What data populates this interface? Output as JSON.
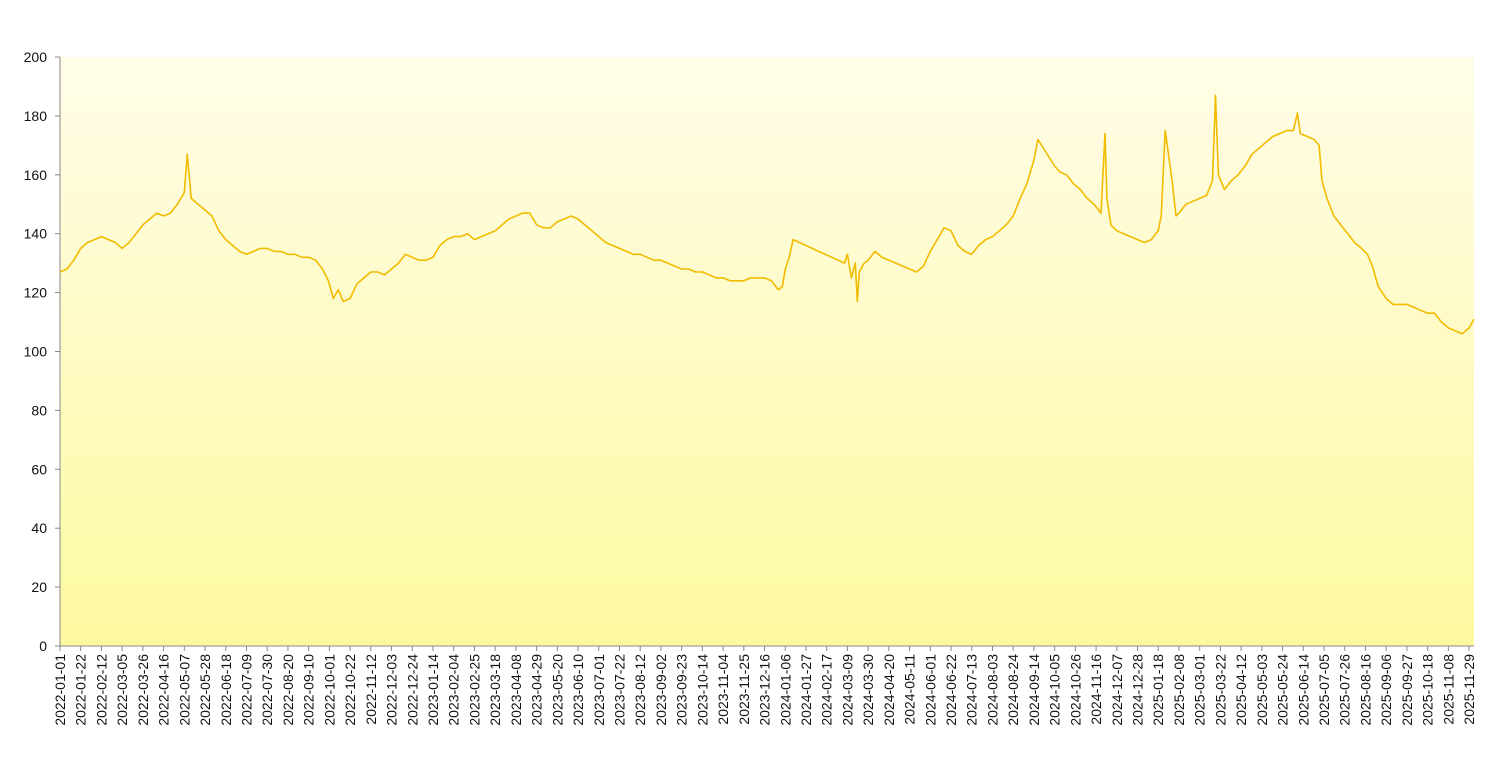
{
  "chart_data": {
    "type": "line",
    "title": "",
    "xlabel": "",
    "ylabel": "",
    "ylim": [
      0,
      200
    ],
    "y_ticks": [
      0,
      20,
      40,
      60,
      80,
      100,
      120,
      140,
      160,
      180,
      200
    ],
    "x_range": [
      "2022-01-01",
      "2025-12-04"
    ],
    "x_tick_labels": [
      "2022-01-01",
      "2022-01-22",
      "2022-02-12",
      "2022-03-05",
      "2022-03-26",
      "2022-04-16",
      "2022-05-07",
      "2022-05-28",
      "2022-06-18",
      "2022-07-09",
      "2022-07-30",
      "2022-08-20",
      "2022-09-10",
      "2022-10-01",
      "2022-10-22",
      "2022-11-12",
      "2022-12-03",
      "2022-12-24",
      "2023-01-14",
      "2023-02-04",
      "2023-02-25",
      "2023-03-18",
      "2023-04-08",
      "2023-04-29",
      "2023-05-20",
      "2023-06-10",
      "2023-07-01",
      "2023-07-22",
      "2023-08-12",
      "2023-09-02",
      "2023-09-23",
      "2023-10-14",
      "2023-11-04",
      "2023-11-25",
      "2023-12-16",
      "2024-01-06",
      "2024-01-27",
      "2024-02-17",
      "2024-03-09",
      "2024-03-30",
      "2024-04-20",
      "2024-05-11",
      "2024-06-01",
      "2024-06-22",
      "2024-07-13",
      "2024-08-03",
      "2024-08-24",
      "2024-09-14",
      "2024-10-05",
      "2024-10-26",
      "2024-11-16",
      "2024-12-07",
      "2024-12-28",
      "2025-01-18",
      "2025-02-08",
      "2025-03-01",
      "2025-03-22",
      "2025-04-12",
      "2025-05-03",
      "2025-05-24",
      "2025-06-14",
      "2025-07-05",
      "2025-07-26",
      "2025-08-16",
      "2025-09-06",
      "2025-09-27",
      "2025-10-18",
      "2025-11-08",
      "2025-11-29"
    ],
    "grid": false,
    "legend": "none",
    "background_gradient": [
      "#fffde8",
      "#fdf9a0"
    ],
    "line_color": "#f2bb00",
    "series": [
      {
        "points": [
          [
            "2022-01-01",
            127
          ],
          [
            "2022-01-08",
            128
          ],
          [
            "2022-01-15",
            131
          ],
          [
            "2022-01-22",
            135
          ],
          [
            "2022-01-29",
            137
          ],
          [
            "2022-02-05",
            138
          ],
          [
            "2022-02-12",
            139
          ],
          [
            "2022-02-19",
            138
          ],
          [
            "2022-02-26",
            137
          ],
          [
            "2022-03-05",
            135
          ],
          [
            "2022-03-12",
            137
          ],
          [
            "2022-03-19",
            140
          ],
          [
            "2022-03-26",
            143
          ],
          [
            "2022-04-02",
            145
          ],
          [
            "2022-04-09",
            147
          ],
          [
            "2022-04-16",
            146
          ],
          [
            "2022-04-23",
            147
          ],
          [
            "2022-04-30",
            150
          ],
          [
            "2022-05-07",
            154
          ],
          [
            "2022-05-10",
            167
          ],
          [
            "2022-05-14",
            152
          ],
          [
            "2022-05-21",
            150
          ],
          [
            "2022-05-28",
            148
          ],
          [
            "2022-06-04",
            146
          ],
          [
            "2022-06-11",
            141
          ],
          [
            "2022-06-18",
            138
          ],
          [
            "2022-06-25",
            136
          ],
          [
            "2022-07-02",
            134
          ],
          [
            "2022-07-09",
            133
          ],
          [
            "2022-07-16",
            134
          ],
          [
            "2022-07-23",
            135
          ],
          [
            "2022-07-30",
            135
          ],
          [
            "2022-08-06",
            134
          ],
          [
            "2022-08-13",
            134
          ],
          [
            "2022-08-20",
            133
          ],
          [
            "2022-08-27",
            133
          ],
          [
            "2022-09-03",
            132
          ],
          [
            "2022-09-10",
            132
          ],
          [
            "2022-09-17",
            131
          ],
          [
            "2022-09-24",
            128
          ],
          [
            "2022-09-30",
            124
          ],
          [
            "2022-10-05",
            118
          ],
          [
            "2022-10-10",
            121
          ],
          [
            "2022-10-15",
            117
          ],
          [
            "2022-10-22",
            118
          ],
          [
            "2022-10-29",
            123
          ],
          [
            "2022-11-05",
            125
          ],
          [
            "2022-11-12",
            127
          ],
          [
            "2022-11-19",
            127
          ],
          [
            "2022-11-26",
            126
          ],
          [
            "2022-12-03",
            128
          ],
          [
            "2022-12-10",
            130
          ],
          [
            "2022-12-17",
            133
          ],
          [
            "2022-12-24",
            132
          ],
          [
            "2022-12-31",
            131
          ],
          [
            "2023-01-07",
            131
          ],
          [
            "2023-01-14",
            132
          ],
          [
            "2023-01-21",
            136
          ],
          [
            "2023-01-28",
            138
          ],
          [
            "2023-02-04",
            139
          ],
          [
            "2023-02-11",
            139
          ],
          [
            "2023-02-18",
            140
          ],
          [
            "2023-02-25",
            138
          ],
          [
            "2023-03-04",
            139
          ],
          [
            "2023-03-11",
            140
          ],
          [
            "2023-03-18",
            141
          ],
          [
            "2023-03-25",
            143
          ],
          [
            "2023-04-01",
            145
          ],
          [
            "2023-04-08",
            146
          ],
          [
            "2023-04-15",
            147
          ],
          [
            "2023-04-22",
            147
          ],
          [
            "2023-04-29",
            143
          ],
          [
            "2023-05-06",
            142
          ],
          [
            "2023-05-13",
            142
          ],
          [
            "2023-05-20",
            144
          ],
          [
            "2023-05-27",
            145
          ],
          [
            "2023-06-03",
            146
          ],
          [
            "2023-06-10",
            145
          ],
          [
            "2023-06-17",
            143
          ],
          [
            "2023-06-24",
            141
          ],
          [
            "2023-07-01",
            139
          ],
          [
            "2023-07-08",
            137
          ],
          [
            "2023-07-15",
            136
          ],
          [
            "2023-07-22",
            135
          ],
          [
            "2023-07-29",
            134
          ],
          [
            "2023-08-05",
            133
          ],
          [
            "2023-08-12",
            133
          ],
          [
            "2023-08-19",
            132
          ],
          [
            "2023-08-26",
            131
          ],
          [
            "2023-09-02",
            131
          ],
          [
            "2023-09-09",
            130
          ],
          [
            "2023-09-16",
            129
          ],
          [
            "2023-09-23",
            128
          ],
          [
            "2023-09-30",
            128
          ],
          [
            "2023-10-07",
            127
          ],
          [
            "2023-10-14",
            127
          ],
          [
            "2023-10-21",
            126
          ],
          [
            "2023-10-28",
            125
          ],
          [
            "2023-11-04",
            125
          ],
          [
            "2023-11-11",
            124
          ],
          [
            "2023-11-18",
            124
          ],
          [
            "2023-11-25",
            124
          ],
          [
            "2023-12-02",
            125
          ],
          [
            "2023-12-09",
            125
          ],
          [
            "2023-12-16",
            125
          ],
          [
            "2023-12-23",
            124
          ],
          [
            "2023-12-30",
            121
          ],
          [
            "2024-01-03",
            122
          ],
          [
            "2024-01-06",
            128
          ],
          [
            "2024-01-10",
            132
          ],
          [
            "2024-01-14",
            138
          ],
          [
            "2024-03-06",
            130
          ],
          [
            "2024-03-09",
            133
          ],
          [
            "2024-03-13",
            125
          ],
          [
            "2024-03-17",
            130
          ],
          [
            "2024-03-19",
            117
          ],
          [
            "2024-03-21",
            127
          ],
          [
            "2024-03-26",
            130
          ],
          [
            "2024-03-30",
            131
          ],
          [
            "2024-04-06",
            134
          ],
          [
            "2024-04-13",
            132
          ],
          [
            "2024-04-20",
            131
          ],
          [
            "2024-04-27",
            130
          ],
          [
            "2024-05-04",
            129
          ],
          [
            "2024-05-11",
            128
          ],
          [
            "2024-05-18",
            127
          ],
          [
            "2024-05-25",
            129
          ],
          [
            "2024-06-01",
            134
          ],
          [
            "2024-06-08",
            138
          ],
          [
            "2024-06-15",
            142
          ],
          [
            "2024-06-22",
            141
          ],
          [
            "2024-06-29",
            136
          ],
          [
            "2024-07-06",
            134
          ],
          [
            "2024-07-13",
            133
          ],
          [
            "2024-07-20",
            136
          ],
          [
            "2024-07-27",
            138
          ],
          [
            "2024-08-03",
            139
          ],
          [
            "2024-08-10",
            141
          ],
          [
            "2024-08-17",
            143
          ],
          [
            "2024-08-24",
            146
          ],
          [
            "2024-08-31",
            152
          ],
          [
            "2024-09-07",
            157
          ],
          [
            "2024-09-14",
            165
          ],
          [
            "2024-09-18",
            172
          ],
          [
            "2024-10-05",
            163
          ],
          [
            "2024-10-10",
            161
          ],
          [
            "2024-10-17",
            160
          ],
          [
            "2024-10-24",
            157
          ],
          [
            "2024-10-31",
            155
          ],
          [
            "2024-11-07",
            152
          ],
          [
            "2024-11-14",
            150
          ],
          [
            "2024-11-21",
            147
          ],
          [
            "2024-11-25",
            174
          ],
          [
            "2024-11-27",
            152
          ],
          [
            "2024-12-01",
            143
          ],
          [
            "2024-12-07",
            141
          ],
          [
            "2024-12-14",
            140
          ],
          [
            "2024-12-21",
            139
          ],
          [
            "2024-12-28",
            138
          ],
          [
            "2025-01-04",
            137
          ],
          [
            "2025-01-11",
            138
          ],
          [
            "2025-01-18",
            141
          ],
          [
            "2025-01-21",
            146
          ],
          [
            "2025-01-25",
            175
          ],
          [
            "2025-02-01",
            158
          ],
          [
            "2025-02-05",
            146
          ],
          [
            "2025-02-08",
            147
          ],
          [
            "2025-02-15",
            150
          ],
          [
            "2025-02-22",
            151
          ],
          [
            "2025-03-01",
            152
          ],
          [
            "2025-03-08",
            153
          ],
          [
            "2025-03-14",
            158
          ],
          [
            "2025-03-17",
            187
          ],
          [
            "2025-03-20",
            160
          ],
          [
            "2025-03-26",
            155
          ],
          [
            "2025-04-02",
            158
          ],
          [
            "2025-04-09",
            160
          ],
          [
            "2025-04-16",
            163
          ],
          [
            "2025-04-23",
            167
          ],
          [
            "2025-04-30",
            169
          ],
          [
            "2025-05-07",
            171
          ],
          [
            "2025-05-14",
            173
          ],
          [
            "2025-05-21",
            174
          ],
          [
            "2025-05-28",
            175
          ],
          [
            "2025-06-04",
            175
          ],
          [
            "2025-06-08",
            181
          ],
          [
            "2025-06-11",
            174
          ],
          [
            "2025-06-18",
            173
          ],
          [
            "2025-06-25",
            172
          ],
          [
            "2025-06-30",
            170
          ],
          [
            "2025-07-03",
            158
          ],
          [
            "2025-07-08",
            152
          ],
          [
            "2025-07-15",
            146
          ],
          [
            "2025-07-22",
            143
          ],
          [
            "2025-07-29",
            140
          ],
          [
            "2025-08-05",
            137
          ],
          [
            "2025-08-12",
            135
          ],
          [
            "2025-08-18",
            133
          ],
          [
            "2025-08-23",
            129
          ],
          [
            "2025-08-29",
            122
          ],
          [
            "2025-09-06",
            118
          ],
          [
            "2025-09-13",
            116
          ],
          [
            "2025-09-20",
            116
          ],
          [
            "2025-09-27",
            116
          ],
          [
            "2025-10-04",
            115
          ],
          [
            "2025-10-11",
            114
          ],
          [
            "2025-10-18",
            113
          ],
          [
            "2025-10-25",
            113
          ],
          [
            "2025-11-01",
            110
          ],
          [
            "2025-11-08",
            108
          ],
          [
            "2025-11-15",
            107
          ],
          [
            "2025-11-22",
            106
          ],
          [
            "2025-11-29",
            108
          ],
          [
            "2025-12-04",
            111
          ]
        ]
      }
    ]
  }
}
